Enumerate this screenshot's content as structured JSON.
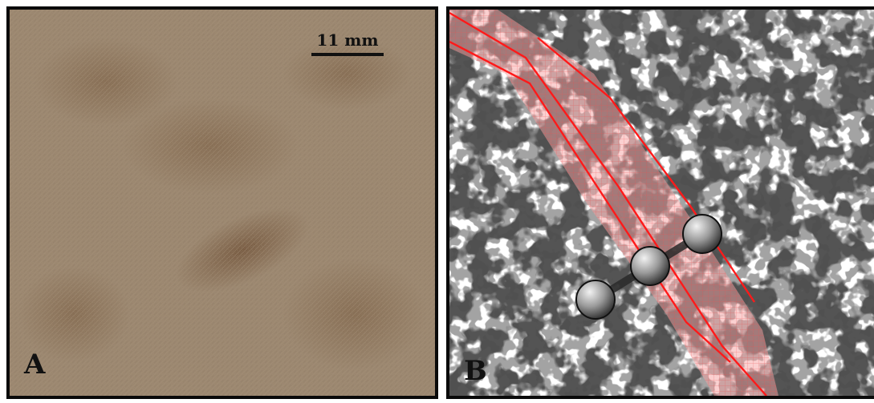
{
  "panel_a": {
    "label": "A",
    "scale_bar_label": "11 mm"
  },
  "panel_b": {
    "label": "B"
  },
  "colors": {
    "fabric_base": "#8f7a62",
    "fabric_stain": "#5e3a1e",
    "band_fill": "#f08a8a",
    "band_line": "#ff1a1a",
    "speckle": "#1a1a1a",
    "marker": "#8a8a8a"
  },
  "icons": [
    "scale-bar",
    "marker-sphere"
  ]
}
